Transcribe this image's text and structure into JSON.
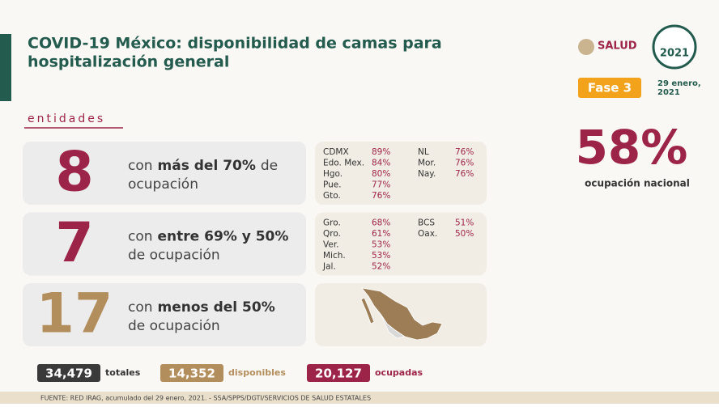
{
  "header": {
    "title_lines": [
      "COVID-19 México: disponibilidad de camas para",
      "hospitalización general"
    ],
    "logo": "SALUD",
    "seal_year": "2021",
    "phase": "Fase 3",
    "date_lines": [
      "29 enero,",
      "2021"
    ]
  },
  "section_label": "entidades",
  "groups": [
    {
      "count": "8",
      "prefix": "con",
      "highlight": "más del 70%",
      "suffix": "de ocupación",
      "columns": [
        [
          [
            "CDMX",
            "89%"
          ],
          [
            "Edo. Mex.",
            "84%"
          ],
          [
            "Hgo.",
            "80%"
          ],
          [
            "Pue.",
            "77%"
          ],
          [
            "Gto.",
            "76%"
          ]
        ],
        [
          [
            "NL",
            "76%"
          ],
          [
            "Mor.",
            "76%"
          ],
          [
            "Nay.",
            "76%"
          ]
        ]
      ]
    },
    {
      "count": "7",
      "prefix": "con",
      "highlight": "entre 69% y 50%",
      "suffix": "de ocupación",
      "columns": [
        [
          [
            "Gro.",
            "68%"
          ],
          [
            "Qro.",
            "61%"
          ],
          [
            "Ver.",
            "53%"
          ],
          [
            "Mich.",
            "53%"
          ],
          [
            "Jal.",
            "52%"
          ]
        ],
        [
          [
            "BCS",
            "51%"
          ],
          [
            "Oax.",
            "50%"
          ]
        ]
      ]
    },
    {
      "count": "17",
      "prefix": "con",
      "highlight": "menos del 50%",
      "suffix": "de ocupación",
      "columns": []
    }
  ],
  "national": {
    "value": "58%",
    "label": "ocupación nacional"
  },
  "totals": [
    {
      "value": "34,479",
      "label": "totales"
    },
    {
      "value": "14,352",
      "label": "disponibles"
    },
    {
      "value": "20,127",
      "label": "ocupadas"
    }
  ],
  "footer": "FUENTE: RED IRAG, acumulado del 29 enero, 2021. - SSA/SPPS/DGTI/SERVICIOS DE SALUD ESTATALES"
}
